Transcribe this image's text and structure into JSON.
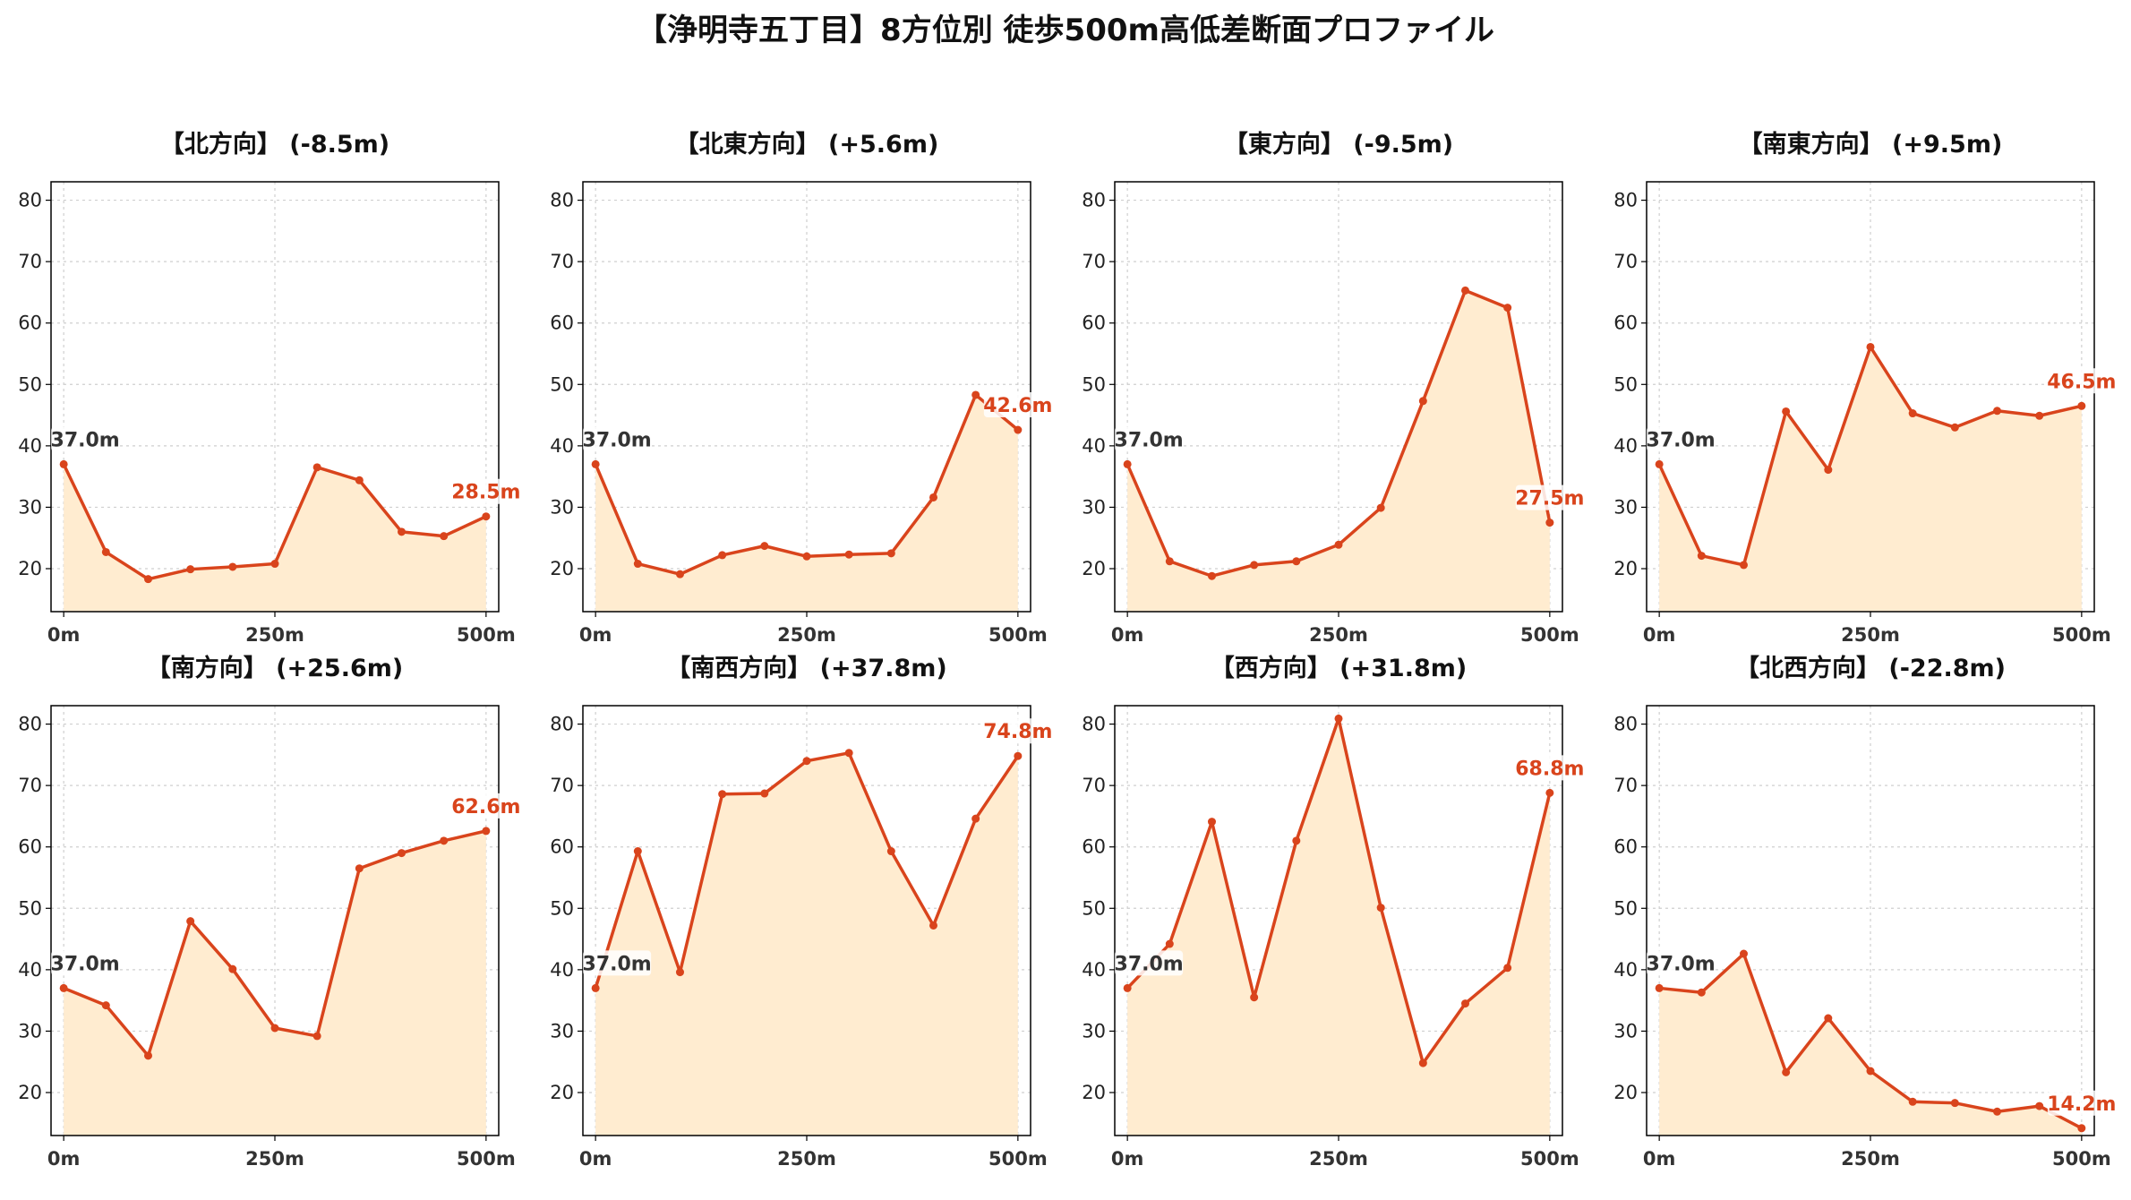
{
  "title": "【浄明寺五丁目】8方位別 徒歩500m高低差断面プロファイル",
  "colors": {
    "line": "#d9441c",
    "fill": "#ffecd0",
    "grid": "#cfcfcf",
    "axis": "#000000"
  },
  "chart_data": [
    {
      "type": "area",
      "title": "【北方向】 (-8.5m)",
      "x": [
        0,
        50,
        100,
        150,
        200,
        250,
        300,
        350,
        400,
        450,
        500
      ],
      "y": [
        37.0,
        22.7,
        18.3,
        19.9,
        20.3,
        20.8,
        36.5,
        34.4,
        26.0,
        25.3,
        28.5
      ],
      "xticks": [
        "0m",
        "250m",
        "500m"
      ],
      "yticks": [
        20,
        30,
        40,
        50,
        60,
        70,
        80
      ],
      "ylim": [
        13,
        83
      ],
      "start_label": "37.0m",
      "end_label": "28.5m",
      "grid": true
    },
    {
      "type": "area",
      "title": "【北東方向】 (+5.6m)",
      "x": [
        0,
        50,
        100,
        150,
        200,
        250,
        300,
        350,
        400,
        450,
        500
      ],
      "y": [
        37.0,
        20.8,
        19.1,
        22.2,
        23.7,
        22.0,
        22.3,
        22.5,
        31.6,
        48.3,
        42.6
      ],
      "xticks": [
        "0m",
        "250m",
        "500m"
      ],
      "yticks": [
        20,
        30,
        40,
        50,
        60,
        70,
        80
      ],
      "ylim": [
        13,
        83
      ],
      "start_label": "37.0m",
      "end_label": "42.6m",
      "grid": true
    },
    {
      "type": "area",
      "title": "【東方向】 (-9.5m)",
      "x": [
        0,
        50,
        100,
        150,
        200,
        250,
        300,
        350,
        400,
        450,
        500
      ],
      "y": [
        37.0,
        21.2,
        18.8,
        20.6,
        21.2,
        23.9,
        29.9,
        47.3,
        65.3,
        62.5,
        27.5
      ],
      "xticks": [
        "0m",
        "250m",
        "500m"
      ],
      "yticks": [
        20,
        30,
        40,
        50,
        60,
        70,
        80
      ],
      "ylim": [
        13,
        83
      ],
      "start_label": "37.0m",
      "end_label": "27.5m",
      "grid": true
    },
    {
      "type": "area",
      "title": "【南東方向】 (+9.5m)",
      "x": [
        0,
        50,
        100,
        150,
        200,
        250,
        300,
        350,
        400,
        450,
        500
      ],
      "y": [
        37.0,
        22.1,
        20.6,
        45.6,
        36.1,
        56.1,
        45.3,
        43.0,
        45.7,
        44.9,
        46.5
      ],
      "xticks": [
        "0m",
        "250m",
        "500m"
      ],
      "yticks": [
        20,
        30,
        40,
        50,
        60,
        70,
        80
      ],
      "ylim": [
        13,
        83
      ],
      "start_label": "37.0m",
      "end_label": "46.5m",
      "grid": true
    },
    {
      "type": "area",
      "title": "【南方向】 (+25.6m)",
      "x": [
        0,
        50,
        100,
        150,
        200,
        250,
        300,
        350,
        400,
        450,
        500
      ],
      "y": [
        37.0,
        34.2,
        26.0,
        47.9,
        40.1,
        30.5,
        29.2,
        56.5,
        59.0,
        61.0,
        62.6
      ],
      "xticks": [
        "0m",
        "250m",
        "500m"
      ],
      "yticks": [
        20,
        30,
        40,
        50,
        60,
        70,
        80
      ],
      "ylim": [
        13,
        83
      ],
      "start_label": "37.0m",
      "end_label": "62.6m",
      "grid": true
    },
    {
      "type": "area",
      "title": "【南西方向】 (+37.8m)",
      "x": [
        0,
        50,
        100,
        150,
        200,
        250,
        300,
        350,
        400,
        450,
        500
      ],
      "y": [
        37.0,
        59.3,
        39.6,
        68.6,
        68.7,
        74.0,
        75.3,
        59.3,
        47.2,
        64.6,
        74.8
      ],
      "xticks": [
        "0m",
        "250m",
        "500m"
      ],
      "yticks": [
        20,
        30,
        40,
        50,
        60,
        70,
        80
      ],
      "ylim": [
        13,
        83
      ],
      "start_label": "37.0m",
      "end_label": "74.8m",
      "grid": true
    },
    {
      "type": "area",
      "title": "【西方向】 (+31.8m)",
      "x": [
        0,
        50,
        100,
        150,
        200,
        250,
        300,
        350,
        400,
        450,
        500
      ],
      "y": [
        37.0,
        44.2,
        64.1,
        35.5,
        61.0,
        80.9,
        50.1,
        24.8,
        34.5,
        40.3,
        68.8
      ],
      "xticks": [
        "0m",
        "250m",
        "500m"
      ],
      "yticks": [
        20,
        30,
        40,
        50,
        60,
        70,
        80
      ],
      "ylim": [
        13,
        83
      ],
      "start_label": "37.0m",
      "end_label": "68.8m",
      "grid": true
    },
    {
      "type": "area",
      "title": "【北西方向】 (-22.8m)",
      "x": [
        0,
        50,
        100,
        150,
        200,
        250,
        300,
        350,
        400,
        450,
        500
      ],
      "y": [
        37.0,
        36.3,
        42.6,
        23.3,
        32.1,
        23.5,
        18.5,
        18.3,
        16.9,
        17.8,
        14.2
      ],
      "xticks": [
        "0m",
        "250m",
        "500m"
      ],
      "yticks": [
        20,
        30,
        40,
        50,
        60,
        70,
        80
      ],
      "ylim": [
        13,
        83
      ],
      "start_label": "37.0m",
      "end_label": "14.2m",
      "grid": true
    }
  ]
}
